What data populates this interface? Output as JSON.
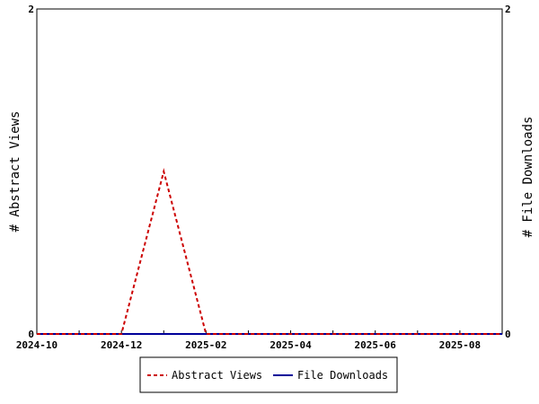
{
  "chart_data": {
    "type": "line",
    "x": [
      "2024-10",
      "2024-11",
      "2024-12",
      "2025-01",
      "2025-02",
      "2025-03",
      "2025-04",
      "2025-05",
      "2025-06",
      "2025-07",
      "2025-08",
      "2025-09"
    ],
    "x_tick_labels": [
      "2024-10",
      "2024-12",
      "2025-02",
      "2025-04",
      "2025-06",
      "2025-08"
    ],
    "series": [
      {
        "name": "Abstract Views",
        "axis": "left",
        "color": "#cc0000",
        "dash": "dashed",
        "values": [
          0,
          0,
          0,
          1,
          0,
          0,
          0,
          0,
          0,
          0,
          0,
          0
        ]
      },
      {
        "name": "File Downloads",
        "axis": "right",
        "color": "#000099",
        "dash": "solid",
        "values": [
          0,
          0,
          0,
          0,
          0,
          0,
          0,
          0,
          0,
          0,
          0,
          0
        ]
      }
    ],
    "ylabel_left": "# Abstract Views",
    "ylabel_right": "# File Downloads",
    "ylim_left": [
      0,
      2
    ],
    "ylim_right": [
      0,
      2
    ],
    "y_ticks_left": [
      "0",
      "2"
    ],
    "y_ticks_right": [
      "0",
      "2"
    ],
    "grid": false,
    "legend_position": "bottom-center"
  }
}
